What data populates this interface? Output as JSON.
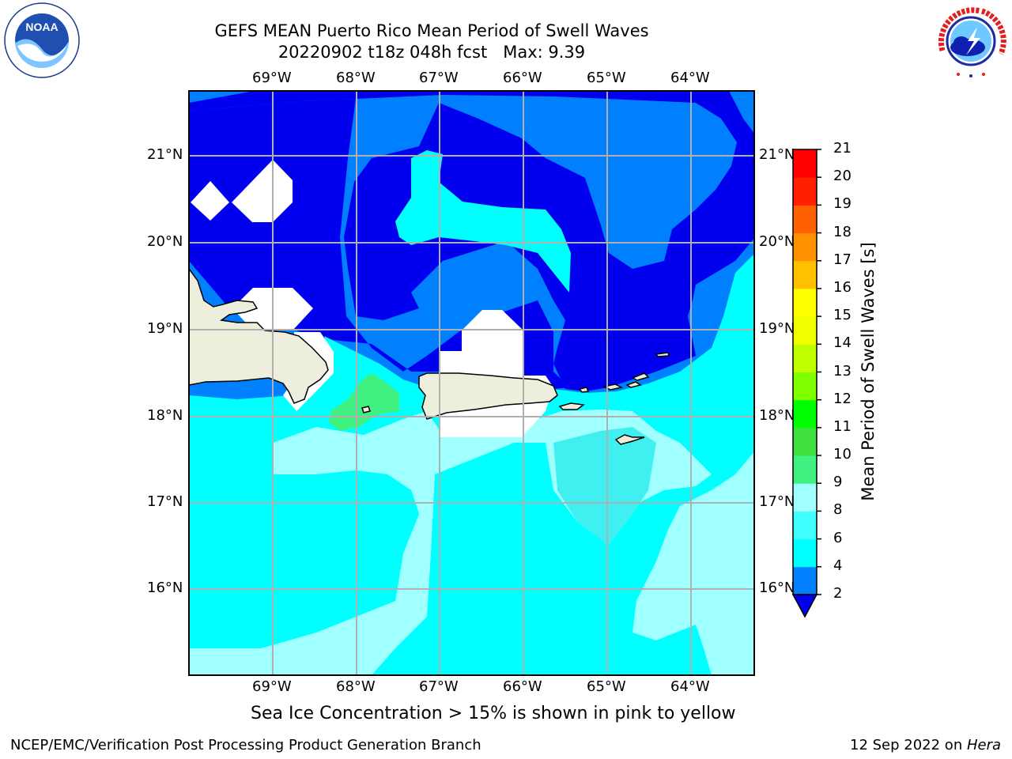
{
  "title": {
    "line1": "GEFS MEAN Puerto Rico Mean Period of Swell Waves",
    "line2": "20220902 t18z 048h fcst   Max: 9.39"
  },
  "logos": {
    "noaa": {
      "text": "NOAA",
      "ring_text": "NATIONAL OCEANIC AND ATMOSPHERIC ADMINISTRATION · U.S. DEPARTMENT OF COMMERCE",
      "icon": "noaa-logo"
    },
    "nws": {
      "ring_text": "NATIONAL WEATHER SERVICE",
      "icon": "nws-logo"
    }
  },
  "map": {
    "lon_range": [
      -70,
      -63.27
    ],
    "lat_range": [
      15.0,
      21.75
    ],
    "lon_ticks": [
      "69°W",
      "68°W",
      "67°W",
      "66°W",
      "65°W",
      "64°W"
    ],
    "lat_ticks": [
      "21°N",
      "20°N",
      "19°N",
      "18°N",
      "17°N",
      "16°N"
    ],
    "grid": true,
    "colors": {
      "band_2_4": "#0000ee",
      "band_4_6": "#0080ff",
      "band_6_8": "#00ffff",
      "band_8_9": "#a0ffff",
      "band_9_10": "#40f080",
      "land": "#eeeedd",
      "no_data": "#ffffff"
    }
  },
  "colorbar": {
    "label": "Mean Period of Swell Waves [s]",
    "ticks": [
      "21",
      "20",
      "19",
      "18",
      "17",
      "16",
      "15",
      "14",
      "13",
      "12",
      "11",
      "10",
      "9",
      "8",
      "6",
      "4",
      "2"
    ],
    "levels": [
      2,
      4,
      6,
      8,
      9,
      10,
      11,
      12,
      13,
      14,
      15,
      16,
      17,
      18,
      19,
      20,
      21
    ],
    "colors": [
      "#0000ee",
      "#0080ff",
      "#00ffff",
      "#40ffff",
      "#a0ffff",
      "#40f080",
      "#40e040",
      "#00ff00",
      "#80ff00",
      "#c0ff00",
      "#f0ff00",
      "#ffff00",
      "#ffc000",
      "#ff9000",
      "#ff6000",
      "#ff2000",
      "#ff0000"
    ]
  },
  "footer": {
    "note": "Sea Ice Concentration > 15% is shown in pink to yellow",
    "credit": "NCEP/EMC/Verification Post Processing Product Generation Branch",
    "date": "12 Sep 2022 on ",
    "host": "Hera"
  }
}
